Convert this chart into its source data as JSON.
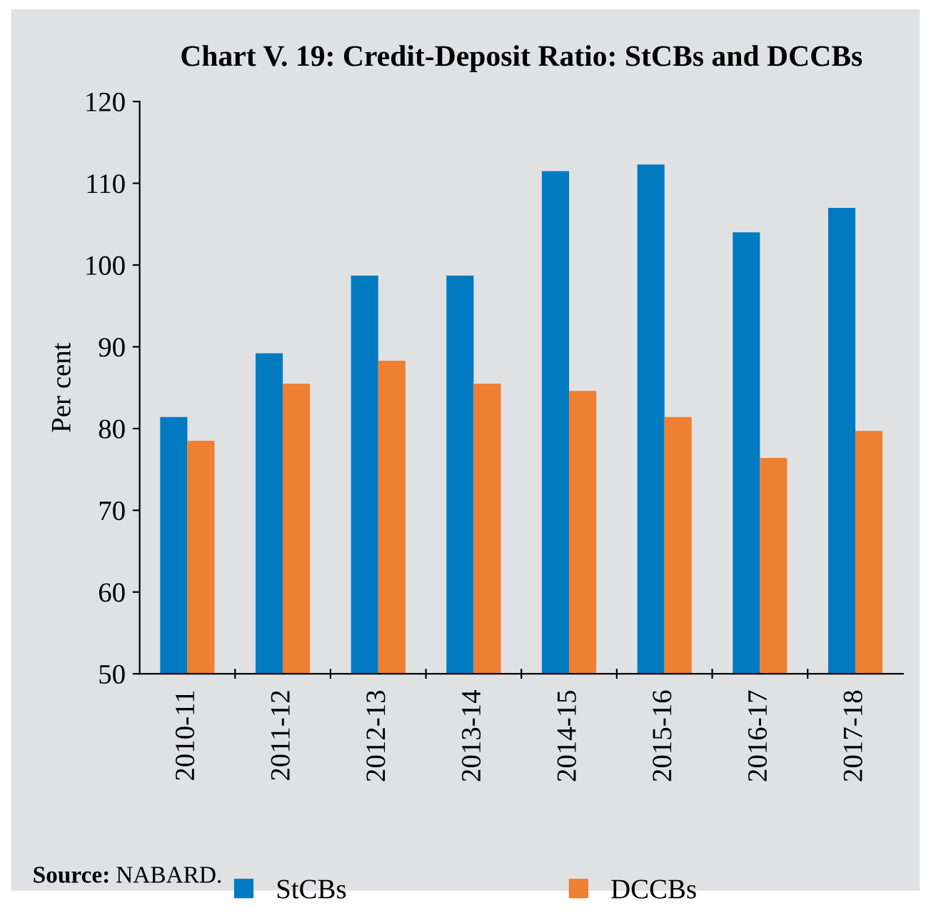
{
  "chart_data": {
    "type": "bar",
    "title": "Chart V. 19: Credit-Deposit Ratio: StCBs and DCCBs",
    "ylabel": "Per cent",
    "categories": [
      "2010-11",
      "2011-12",
      "2012-13",
      "2013-14",
      "2014-15",
      "2015-16",
      "2016-17",
      "2017-18"
    ],
    "series": [
      {
        "name": "StCBs",
        "color": "#007bc2",
        "values": [
          81.4,
          89.2,
          98.7,
          98.7,
          111.5,
          112.3,
          104.0,
          107.0
        ]
      },
      {
        "name": "DCCBs",
        "color": "#ef7f32",
        "values": [
          78.5,
          85.5,
          88.3,
          85.5,
          84.6,
          81.4,
          76.4,
          79.7
        ]
      }
    ],
    "ylim": [
      50,
      120
    ],
    "yticks": [
      50,
      60,
      70,
      80,
      90,
      100,
      110,
      120
    ],
    "grid": false,
    "legend": "bottom",
    "annotations": [
      "Source: NABARD."
    ]
  }
}
